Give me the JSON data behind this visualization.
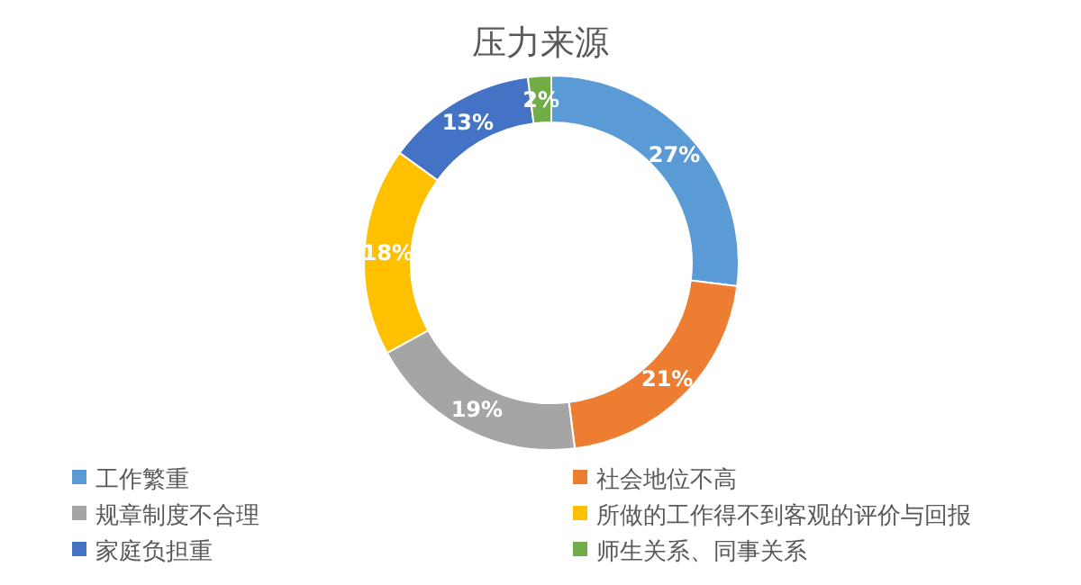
{
  "chart_data": {
    "type": "donut",
    "title": "压力来源",
    "categories": [
      "工作繁重",
      "社会地位不高",
      "规章制度不合理",
      "所做的工作得不到客观的评价与回报",
      "家庭负担重",
      "师生关系、同事关系"
    ],
    "values": [
      27,
      21,
      19,
      18,
      13,
      2
    ],
    "value_labels": [
      "27%",
      "21%",
      "19%",
      "18%",
      "13%",
      "2%"
    ],
    "colors": [
      "#5b9bd5",
      "#ed7d31",
      "#a5a5a5",
      "#ffc000",
      "#4472c4",
      "#70ad47"
    ],
    "legend": "bottom"
  }
}
